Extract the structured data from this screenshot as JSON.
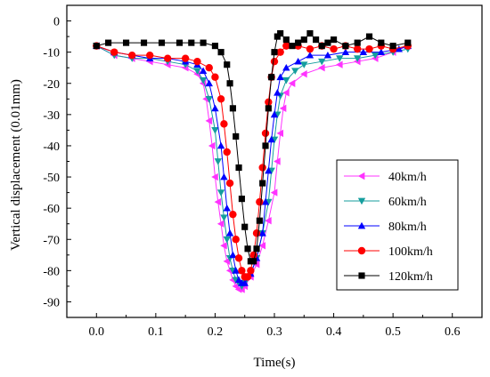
{
  "chart_data": {
    "type": "scatter",
    "xlabel": "Time(s)",
    "ylabel": "Vertical displacement (0.01mm)",
    "xlim": [
      -0.05,
      0.65
    ],
    "ylim": [
      -95,
      5
    ],
    "xticks": [
      0.0,
      0.1,
      0.2,
      0.3,
      0.4,
      0.5,
      0.6
    ],
    "xtick_labels": [
      "0.0",
      "0.1",
      "0.2",
      "0.3",
      "0.4",
      "0.5",
      "0.6"
    ],
    "yticks": [
      0,
      -10,
      -20,
      -30,
      -40,
      -50,
      -60,
      -70,
      -80,
      -90
    ],
    "ytick_labels": [
      "0",
      "-10",
      "-20",
      "-30",
      "-40",
      "-50",
      "-60",
      "-70",
      "-80",
      "-90"
    ],
    "grid": false,
    "legend_position": "right",
    "series": [
      {
        "name": "40km/h",
        "color": "#ff33ff",
        "marker": "triangle-left",
        "points": [
          [
            0.0,
            -8
          ],
          [
            0.03,
            -11
          ],
          [
            0.06,
            -12
          ],
          [
            0.09,
            -13
          ],
          [
            0.12,
            -14
          ],
          [
            0.15,
            -15
          ],
          [
            0.17,
            -17
          ],
          [
            0.18,
            -20
          ],
          [
            0.185,
            -25
          ],
          [
            0.19,
            -32
          ],
          [
            0.195,
            -40
          ],
          [
            0.2,
            -50
          ],
          [
            0.205,
            -58
          ],
          [
            0.21,
            -65
          ],
          [
            0.215,
            -72
          ],
          [
            0.22,
            -77
          ],
          [
            0.225,
            -80
          ],
          [
            0.23,
            -83
          ],
          [
            0.235,
            -85
          ],
          [
            0.24,
            -86
          ],
          [
            0.245,
            -86
          ],
          [
            0.25,
            -85
          ],
          [
            0.26,
            -82
          ],
          [
            0.27,
            -78
          ],
          [
            0.28,
            -72
          ],
          [
            0.29,
            -64
          ],
          [
            0.3,
            -55
          ],
          [
            0.305,
            -45
          ],
          [
            0.31,
            -36
          ],
          [
            0.315,
            -28
          ],
          [
            0.32,
            -23
          ],
          [
            0.33,
            -20
          ],
          [
            0.35,
            -17
          ],
          [
            0.38,
            -15
          ],
          [
            0.41,
            -14
          ],
          [
            0.44,
            -13
          ],
          [
            0.47,
            -12
          ],
          [
            0.5,
            -10
          ],
          [
            0.525,
            -8
          ]
        ]
      },
      {
        "name": "60km/h",
        "color": "#159e9e",
        "marker": "triangle-down",
        "points": [
          [
            0.0,
            -8
          ],
          [
            0.03,
            -11
          ],
          [
            0.06,
            -12
          ],
          [
            0.09,
            -12
          ],
          [
            0.12,
            -13
          ],
          [
            0.15,
            -14
          ],
          [
            0.17,
            -16
          ],
          [
            0.18,
            -19
          ],
          [
            0.19,
            -25
          ],
          [
            0.2,
            -35
          ],
          [
            0.205,
            -45
          ],
          [
            0.21,
            -55
          ],
          [
            0.215,
            -63
          ],
          [
            0.22,
            -70
          ],
          [
            0.225,
            -76
          ],
          [
            0.23,
            -80
          ],
          [
            0.235,
            -83
          ],
          [
            0.24,
            -84
          ],
          [
            0.245,
            -85
          ],
          [
            0.25,
            -84
          ],
          [
            0.26,
            -81
          ],
          [
            0.27,
            -76
          ],
          [
            0.28,
            -68
          ],
          [
            0.29,
            -58
          ],
          [
            0.295,
            -48
          ],
          [
            0.3,
            -38
          ],
          [
            0.305,
            -30
          ],
          [
            0.31,
            -24
          ],
          [
            0.32,
            -19
          ],
          [
            0.335,
            -16
          ],
          [
            0.35,
            -14
          ],
          [
            0.38,
            -13
          ],
          [
            0.41,
            -12
          ],
          [
            0.44,
            -12
          ],
          [
            0.47,
            -11
          ],
          [
            0.5,
            -10
          ],
          [
            0.525,
            -9
          ]
        ]
      },
      {
        "name": "80km/h",
        "color": "#0000ff",
        "marker": "triangle-up",
        "points": [
          [
            0.0,
            -8
          ],
          [
            0.03,
            -10
          ],
          [
            0.06,
            -11
          ],
          [
            0.09,
            -12
          ],
          [
            0.12,
            -12
          ],
          [
            0.15,
            -13
          ],
          [
            0.17,
            -14
          ],
          [
            0.18,
            -16
          ],
          [
            0.19,
            -20
          ],
          [
            0.2,
            -28
          ],
          [
            0.21,
            -40
          ],
          [
            0.215,
            -50
          ],
          [
            0.22,
            -60
          ],
          [
            0.225,
            -68
          ],
          [
            0.23,
            -75
          ],
          [
            0.235,
            -80
          ],
          [
            0.24,
            -83
          ],
          [
            0.245,
            -84
          ],
          [
            0.25,
            -84
          ],
          [
            0.26,
            -81
          ],
          [
            0.27,
            -76
          ],
          [
            0.28,
            -68
          ],
          [
            0.285,
            -58
          ],
          [
            0.29,
            -48
          ],
          [
            0.295,
            -38
          ],
          [
            0.3,
            -30
          ],
          [
            0.305,
            -23
          ],
          [
            0.31,
            -18
          ],
          [
            0.32,
            -15
          ],
          [
            0.34,
            -13
          ],
          [
            0.36,
            -11
          ],
          [
            0.39,
            -11
          ],
          [
            0.42,
            -10
          ],
          [
            0.45,
            -10
          ],
          [
            0.48,
            -10
          ],
          [
            0.51,
            -9
          ],
          [
            0.525,
            -8
          ]
        ]
      },
      {
        "name": "100km/h",
        "color": "#ff0000",
        "marker": "circle",
        "points": [
          [
            0.0,
            -8
          ],
          [
            0.03,
            -10
          ],
          [
            0.06,
            -11
          ],
          [
            0.09,
            -11
          ],
          [
            0.12,
            -12
          ],
          [
            0.15,
            -12
          ],
          [
            0.17,
            -13
          ],
          [
            0.19,
            -15
          ],
          [
            0.2,
            -18
          ],
          [
            0.21,
            -25
          ],
          [
            0.215,
            -33
          ],
          [
            0.22,
            -42
          ],
          [
            0.225,
            -52
          ],
          [
            0.23,
            -62
          ],
          [
            0.235,
            -70
          ],
          [
            0.24,
            -76
          ],
          [
            0.245,
            -80
          ],
          [
            0.25,
            -82
          ],
          [
            0.255,
            -82
          ],
          [
            0.26,
            -80
          ],
          [
            0.265,
            -75
          ],
          [
            0.27,
            -68
          ],
          [
            0.275,
            -58
          ],
          [
            0.28,
            -47
          ],
          [
            0.285,
            -36
          ],
          [
            0.29,
            -26
          ],
          [
            0.295,
            -18
          ],
          [
            0.3,
            -13
          ],
          [
            0.31,
            -10
          ],
          [
            0.32,
            -8
          ],
          [
            0.34,
            -8
          ],
          [
            0.36,
            -9
          ],
          [
            0.38,
            -8
          ],
          [
            0.4,
            -9
          ],
          [
            0.42,
            -8
          ],
          [
            0.44,
            -9
          ],
          [
            0.46,
            -9
          ],
          [
            0.48,
            -8
          ],
          [
            0.5,
            -9
          ],
          [
            0.525,
            -8
          ]
        ]
      },
      {
        "name": "120km/h",
        "color": "#000000",
        "marker": "square",
        "points": [
          [
            0.0,
            -8
          ],
          [
            0.02,
            -7
          ],
          [
            0.05,
            -7
          ],
          [
            0.08,
            -7
          ],
          [
            0.11,
            -7
          ],
          [
            0.14,
            -7
          ],
          [
            0.16,
            -7
          ],
          [
            0.18,
            -7
          ],
          [
            0.2,
            -8
          ],
          [
            0.21,
            -10
          ],
          [
            0.22,
            -14
          ],
          [
            0.225,
            -20
          ],
          [
            0.23,
            -28
          ],
          [
            0.235,
            -37
          ],
          [
            0.24,
            -47
          ],
          [
            0.245,
            -57
          ],
          [
            0.25,
            -66
          ],
          [
            0.255,
            -73
          ],
          [
            0.26,
            -77
          ],
          [
            0.265,
            -77
          ],
          [
            0.27,
            -73
          ],
          [
            0.275,
            -64
          ],
          [
            0.28,
            -52
          ],
          [
            0.285,
            -40
          ],
          [
            0.29,
            -28
          ],
          [
            0.295,
            -18
          ],
          [
            0.3,
            -10
          ],
          [
            0.305,
            -5
          ],
          [
            0.31,
            -4
          ],
          [
            0.32,
            -6
          ],
          [
            0.33,
            -8
          ],
          [
            0.34,
            -7
          ],
          [
            0.35,
            -6
          ],
          [
            0.36,
            -4
          ],
          [
            0.37,
            -6
          ],
          [
            0.38,
            -8
          ],
          [
            0.39,
            -7
          ],
          [
            0.4,
            -6
          ],
          [
            0.42,
            -8
          ],
          [
            0.44,
            -7
          ],
          [
            0.46,
            -5
          ],
          [
            0.48,
            -7
          ],
          [
            0.5,
            -8
          ],
          [
            0.525,
            -7
          ]
        ]
      }
    ]
  }
}
